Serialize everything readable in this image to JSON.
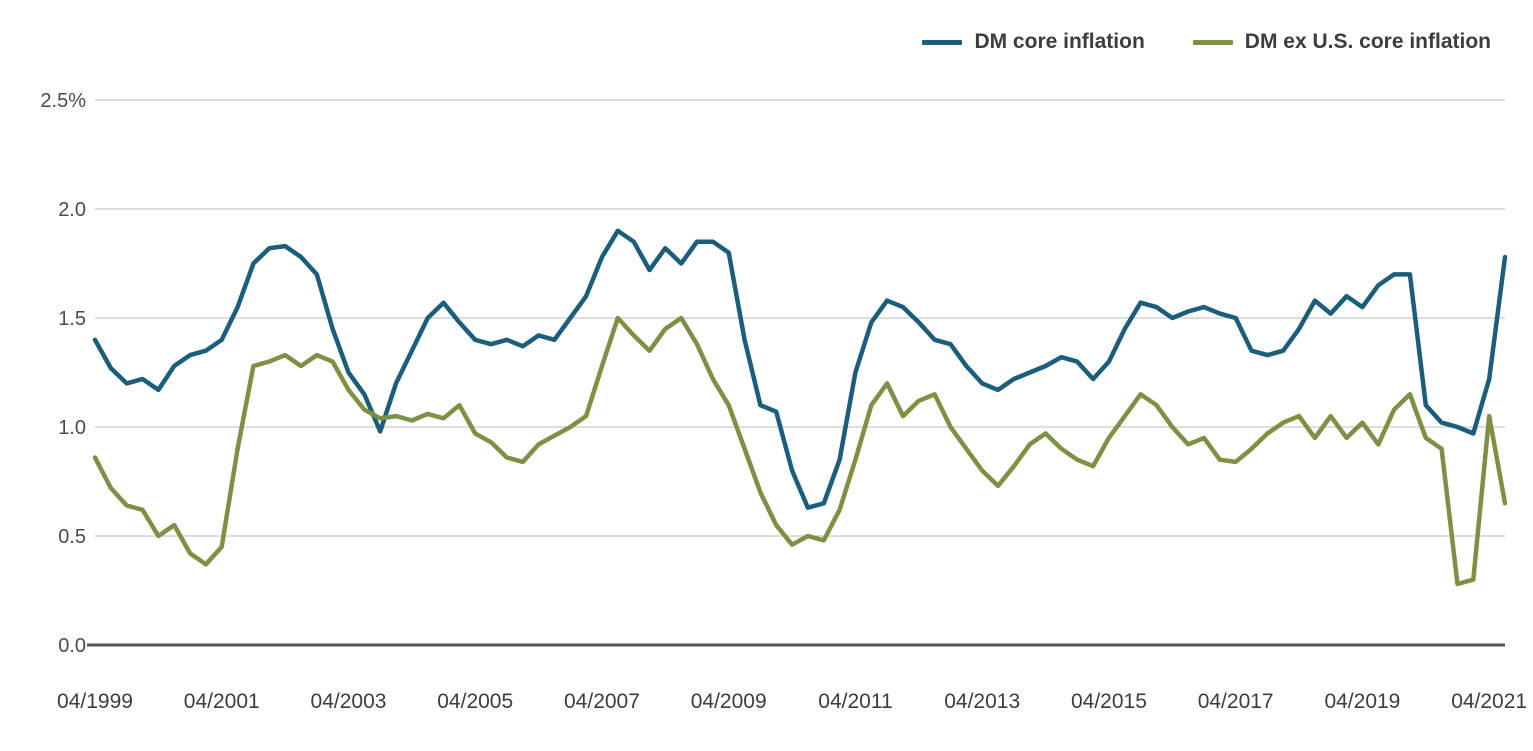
{
  "chart_data": {
    "type": "line",
    "title": "",
    "xlabel": "",
    "ylabel": "",
    "ylim": [
      0,
      2.5
    ],
    "grid": "horizontal",
    "legend_position": "top-right",
    "y_ticks": [
      "0.0",
      "0.5",
      "1.0",
      "1.5",
      "2.0",
      "2.5%"
    ],
    "x_tick_labels": [
      "04/1999",
      "04/2001",
      "04/2003",
      "04/2005",
      "04/2007",
      "04/2009",
      "04/2011",
      "04/2013",
      "04/2015",
      "04/2017",
      "04/2019",
      "04/2021"
    ],
    "x": [
      "04/1999",
      "07/1999",
      "10/1999",
      "01/2000",
      "04/2000",
      "07/2000",
      "10/2000",
      "01/2001",
      "04/2001",
      "07/2001",
      "10/2001",
      "01/2002",
      "04/2002",
      "07/2002",
      "10/2002",
      "01/2003",
      "04/2003",
      "07/2003",
      "10/2003",
      "01/2004",
      "04/2004",
      "07/2004",
      "10/2004",
      "01/2005",
      "04/2005",
      "07/2005",
      "10/2005",
      "01/2006",
      "04/2006",
      "07/2006",
      "10/2006",
      "01/2007",
      "04/2007",
      "07/2007",
      "10/2007",
      "01/2008",
      "04/2008",
      "07/2008",
      "10/2008",
      "01/2009",
      "04/2009",
      "07/2009",
      "10/2009",
      "01/2010",
      "04/2010",
      "07/2010",
      "10/2010",
      "01/2011",
      "04/2011",
      "07/2011",
      "10/2011",
      "01/2012",
      "04/2012",
      "07/2012",
      "10/2012",
      "01/2013",
      "04/2013",
      "07/2013",
      "10/2013",
      "01/2014",
      "04/2014",
      "07/2014",
      "10/2014",
      "01/2015",
      "04/2015",
      "07/2015",
      "10/2015",
      "01/2016",
      "04/2016",
      "07/2016",
      "10/2016",
      "01/2017",
      "04/2017",
      "07/2017",
      "10/2017",
      "01/2018",
      "04/2018",
      "07/2018",
      "10/2018",
      "01/2019",
      "04/2019",
      "07/2019",
      "10/2019",
      "01/2020",
      "04/2020",
      "07/2020",
      "10/2020",
      "01/2021",
      "04/2021",
      "07/2021"
    ],
    "series": [
      {
        "name": "DM core inflation",
        "color": "#1b5d7c",
        "values": [
          1.4,
          1.27,
          1.2,
          1.22,
          1.17,
          1.28,
          1.33,
          1.35,
          1.4,
          1.55,
          1.75,
          1.82,
          1.83,
          1.78,
          1.7,
          1.45,
          1.25,
          1.15,
          0.98,
          1.2,
          1.35,
          1.5,
          1.57,
          1.48,
          1.4,
          1.38,
          1.4,
          1.37,
          1.42,
          1.4,
          1.5,
          1.6,
          1.78,
          1.9,
          1.85,
          1.72,
          1.82,
          1.75,
          1.85,
          1.85,
          1.8,
          1.4,
          1.1,
          1.07,
          0.8,
          0.63,
          0.65,
          0.85,
          1.25,
          1.48,
          1.58,
          1.55,
          1.48,
          1.4,
          1.38,
          1.28,
          1.2,
          1.17,
          1.22,
          1.25,
          1.28,
          1.32,
          1.3,
          1.22,
          1.3,
          1.45,
          1.57,
          1.55,
          1.5,
          1.53,
          1.55,
          1.52,
          1.5,
          1.35,
          1.33,
          1.35,
          1.45,
          1.58,
          1.52,
          1.6,
          1.55,
          1.65,
          1.7,
          1.7,
          1.1,
          1.02,
          1.0,
          0.97,
          1.22,
          1.78
        ]
      },
      {
        "name": "DM ex U.S. core inflation",
        "color": "#7d9143",
        "values": [
          0.86,
          0.72,
          0.64,
          0.62,
          0.5,
          0.55,
          0.42,
          0.37,
          0.45,
          0.9,
          1.28,
          1.3,
          1.33,
          1.28,
          1.33,
          1.3,
          1.17,
          1.08,
          1.04,
          1.05,
          1.03,
          1.06,
          1.04,
          1.1,
          0.97,
          0.93,
          0.86,
          0.84,
          0.92,
          0.96,
          1.0,
          1.05,
          1.28,
          1.5,
          1.42,
          1.35,
          1.45,
          1.5,
          1.38,
          1.22,
          1.1,
          0.9,
          0.7,
          0.55,
          0.46,
          0.5,
          0.48,
          0.62,
          0.85,
          1.1,
          1.2,
          1.05,
          1.12,
          1.15,
          1.0,
          0.9,
          0.8,
          0.73,
          0.82,
          0.92,
          0.97,
          0.9,
          0.85,
          0.82,
          0.95,
          1.05,
          1.15,
          1.1,
          1.0,
          0.92,
          0.95,
          0.85,
          0.84,
          0.9,
          0.97,
          1.02,
          1.05,
          0.95,
          1.05,
          0.95,
          1.02,
          0.92,
          1.08,
          1.15,
          0.95,
          0.9,
          0.28,
          0.3,
          1.05,
          0.65
        ]
      }
    ]
  },
  "colors": {
    "gridline": "#c9c9c9",
    "axis_line": "#55565a",
    "background": "#ffffff",
    "series_blue": "#1b5d7c",
    "series_green": "#7d9143"
  }
}
